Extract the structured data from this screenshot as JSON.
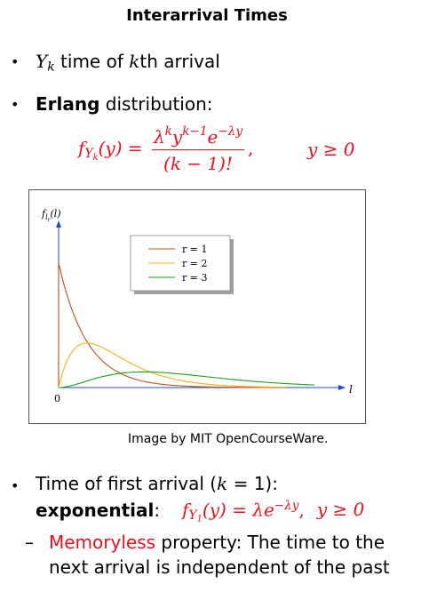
{
  "title": "Interarrival Times",
  "bullet1": {
    "var": "Y",
    "sub": "k",
    "text": " time of ",
    "k": "k",
    "text2": "th arrival"
  },
  "bullet2": {
    "bold": "Erlang",
    "text": " distribution:"
  },
  "formula": {
    "lhs_f": "f",
    "lhs_sub_Y": "Y",
    "lhs_sub_k": "k",
    "lhs_arg": "(y) =",
    "numerator": "λ",
    "num_sup_k": "k",
    "num_y": "y",
    "num_sup_k1": "k−1",
    "num_e": "e",
    "num_sup_ly": "−λy",
    "denominator": "(k − 1)!",
    "comma": ",",
    "condition": "y ≥ 0"
  },
  "figure": {
    "ylabel_f": "f",
    "ylabel_sub": "l",
    "ylabel_subsub": "r",
    "ylabel_arg": "(l)",
    "xlabel": "l",
    "origin": "0",
    "caption": "Image by MIT OpenCourseWare."
  },
  "chart_data": {
    "type": "line",
    "title": "",
    "xlabel": "l",
    "ylabel": "f_{l_r}(l)",
    "legend_position": "top-center",
    "series": [
      {
        "name": "r = 1",
        "color": "#c0501a",
        "shape": "exponential",
        "x": [
          0,
          0.5,
          1,
          2,
          3,
          4,
          5,
          6,
          7,
          7.8
        ],
        "y": [
          1.0,
          0.61,
          0.37,
          0.135,
          0.05,
          0.018,
          0.007,
          0.002,
          0.001,
          0.0
        ]
      },
      {
        "name": "r = 2",
        "color": "#f2b21a",
        "shape": "erlang-2",
        "x": [
          0,
          0.5,
          1,
          2,
          3,
          4,
          5,
          6,
          7,
          8
        ],
        "y": [
          0.0,
          0.3,
          0.37,
          0.27,
          0.15,
          0.07,
          0.034,
          0.015,
          0.006,
          0.003
        ]
      },
      {
        "name": "r = 3",
        "color": "#1aa01a",
        "shape": "erlang-3",
        "x": [
          0,
          1,
          2,
          3,
          4,
          5,
          6,
          7,
          8,
          9
        ],
        "y": [
          0.0,
          0.09,
          0.18,
          0.22,
          0.2,
          0.14,
          0.09,
          0.05,
          0.025,
          0.015
        ]
      }
    ],
    "legend": [
      "r = 1",
      "r = 2",
      "r = 3"
    ],
    "grid": false
  },
  "bullet3": {
    "text": "Time of first arrival (",
    "k": "k",
    "eq": " = 1",
    "close": "):",
    "bold": "exponential",
    "colon": ":",
    "f": "f",
    "sub_Y": "Y",
    "sub_1": "1",
    "arg": "(y) = λe",
    "sup": "−λy",
    "comma": ",",
    "condition": "y ≥ 0"
  },
  "dash": {
    "symbol": "–",
    "red": "Memoryless",
    "text1": " property: The time to the",
    "text2": "next arrival is independent of the past"
  }
}
